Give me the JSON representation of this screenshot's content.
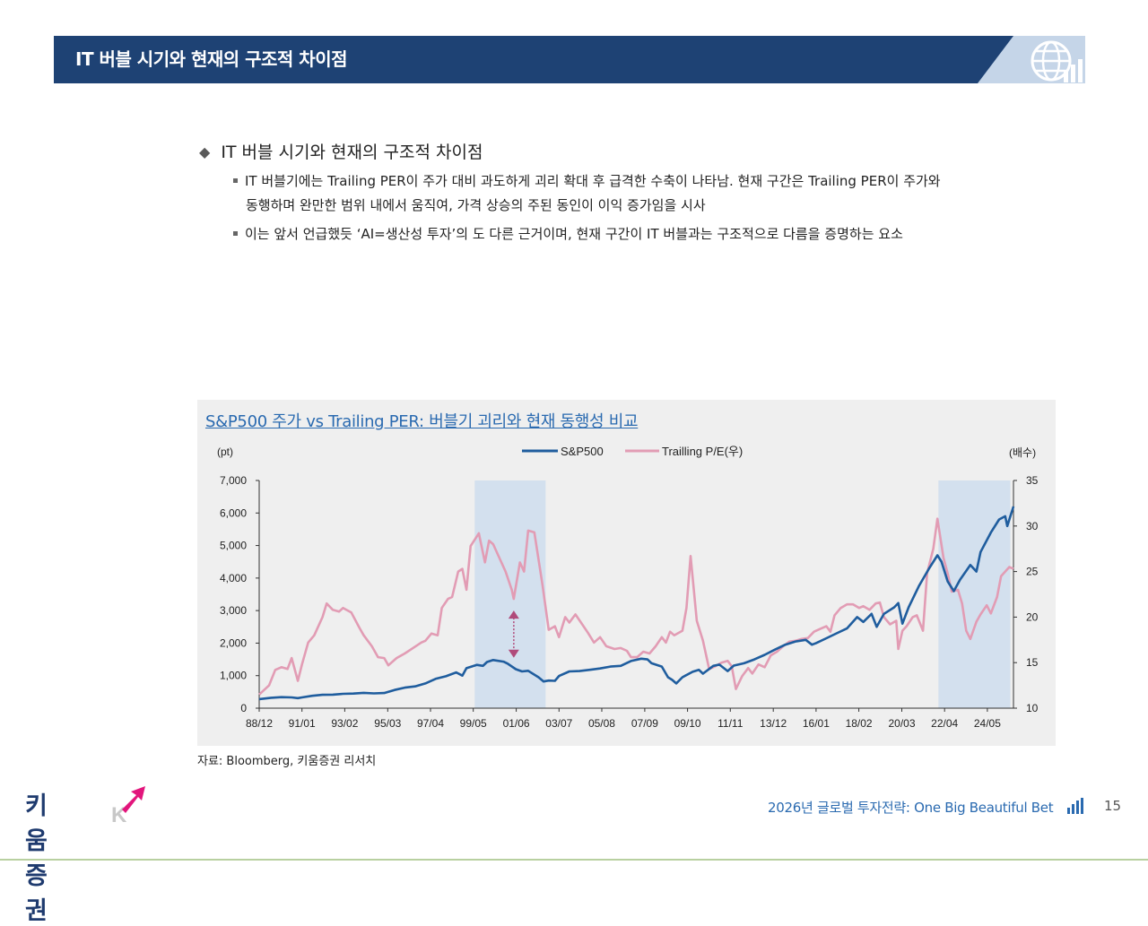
{
  "header": {
    "title": "IT 버블 시기와 현재의 구조적 차이점",
    "icon": "globe-chart-icon"
  },
  "content": {
    "main_bullet": "IT 버블 시기와 현재의 구조적 차이점",
    "sub_bullets": [
      {
        "line1": "IT 버블기에는 Trailing PER이 주가 대비 과도하게 괴리 확대 후 급격한 수축이 나타남. 현재 구간은 Trailing PER이 주가와",
        "line2": "동행하며 완만한 범위 내에서 움직여, 가격 상승의 주된 동인이 이익 증가임을 시사"
      },
      {
        "line1": "이는 앞서 언급했듯 ‘AI=생산성 투자’의 도 다른 근거이며, 현재 구간이 IT 버블과는 구조적으로 다름을 증명하는 요소"
      }
    ]
  },
  "chart_data": {
    "type": "line",
    "title": "S&P500 주가 vs Trailing PER: 버블기 괴리와 현재 동행성 비교",
    "left_unit": "(pt)",
    "right_unit": "(배수)",
    "x_tick_labels": [
      "88/12",
      "91/01",
      "93/02",
      "95/03",
      "97/04",
      "99/05",
      "01/06",
      "03/07",
      "05/08",
      "07/09",
      "09/10",
      "11/11",
      "13/12",
      "16/01",
      "18/02",
      "20/03",
      "22/04",
      "24/05"
    ],
    "x_tick_positions": [
      1988.92,
      1991.0,
      1993.08,
      1995.17,
      1997.25,
      1999.33,
      2001.42,
      2003.5,
      2005.58,
      2007.67,
      2009.75,
      2011.83,
      2013.92,
      2016.0,
      2018.08,
      2020.17,
      2022.25,
      2024.33
    ],
    "x_range": [
      1988.92,
      2025.6
    ],
    "y_left": {
      "range": [
        0,
        7000
      ],
      "ticks": [
        "0",
        "1,000",
        "2,000",
        "3,000",
        "4,000",
        "5,000",
        "6,000",
        "7,000"
      ],
      "tick_values": [
        0,
        1000,
        2000,
        3000,
        4000,
        5000,
        6000,
        7000
      ]
    },
    "y_right": {
      "range": [
        10,
        35
      ],
      "ticks": [
        "10",
        "15",
        "20",
        "25",
        "30",
        "35"
      ],
      "tick_values": [
        10,
        15,
        20,
        25,
        30,
        35
      ]
    },
    "shaded_periods": [
      [
        1999.4,
        2002.85
      ],
      [
        2021.95,
        2025.45
      ]
    ],
    "arrow_annotation": {
      "x": 2001.3,
      "y_left_top": 3000,
      "y_left_bottom": 1550
    },
    "series": [
      {
        "name": "S&P500",
        "axis": "left",
        "color": "#1f5d9e",
        "points": [
          [
            1988.92,
            278
          ],
          [
            1989.5,
            320
          ],
          [
            1990.0,
            340
          ],
          [
            1990.5,
            330
          ],
          [
            1990.8,
            310
          ],
          [
            1991.0,
            330
          ],
          [
            1991.5,
            380
          ],
          [
            1992.0,
            410
          ],
          [
            1992.5,
            415
          ],
          [
            1993.0,
            440
          ],
          [
            1993.5,
            450
          ],
          [
            1994.0,
            470
          ],
          [
            1994.5,
            455
          ],
          [
            1995.0,
            465
          ],
          [
            1995.5,
            560
          ],
          [
            1996.0,
            630
          ],
          [
            1996.5,
            670
          ],
          [
            1997.0,
            760
          ],
          [
            1997.5,
            900
          ],
          [
            1998.0,
            980
          ],
          [
            1998.5,
            1100
          ],
          [
            1998.8,
            1000
          ],
          [
            1999.0,
            1230
          ],
          [
            1999.5,
            1330
          ],
          [
            1999.8,
            1300
          ],
          [
            2000.0,
            1420
          ],
          [
            2000.3,
            1480
          ],
          [
            2000.8,
            1430
          ],
          [
            2001.0,
            1370
          ],
          [
            2001.4,
            1200
          ],
          [
            2001.7,
            1130
          ],
          [
            2002.0,
            1150
          ],
          [
            2002.5,
            950
          ],
          [
            2002.75,
            820
          ],
          [
            2003.0,
            850
          ],
          [
            2003.3,
            840
          ],
          [
            2003.5,
            990
          ],
          [
            2004.0,
            1130
          ],
          [
            2004.5,
            1140
          ],
          [
            2005.0,
            1180
          ],
          [
            2005.5,
            1220
          ],
          [
            2006.0,
            1280
          ],
          [
            2006.5,
            1300
          ],
          [
            2007.0,
            1450
          ],
          [
            2007.5,
            1520
          ],
          [
            2007.8,
            1500
          ],
          [
            2008.0,
            1380
          ],
          [
            2008.5,
            1280
          ],
          [
            2008.8,
            950
          ],
          [
            2009.0,
            870
          ],
          [
            2009.2,
            760
          ],
          [
            2009.5,
            950
          ],
          [
            2010.0,
            1120
          ],
          [
            2010.3,
            1180
          ],
          [
            2010.5,
            1060
          ],
          [
            2011.0,
            1300
          ],
          [
            2011.3,
            1340
          ],
          [
            2011.7,
            1140
          ],
          [
            2012.0,
            1310
          ],
          [
            2012.5,
            1380
          ],
          [
            2013.0,
            1500
          ],
          [
            2013.5,
            1640
          ],
          [
            2014.0,
            1800
          ],
          [
            2014.5,
            1950
          ],
          [
            2015.0,
            2050
          ],
          [
            2015.5,
            2100
          ],
          [
            2015.8,
            1950
          ],
          [
            2016.0,
            2000
          ],
          [
            2016.5,
            2150
          ],
          [
            2017.0,
            2300
          ],
          [
            2017.5,
            2450
          ],
          [
            2018.0,
            2800
          ],
          [
            2018.3,
            2650
          ],
          [
            2018.7,
            2900
          ],
          [
            2018.95,
            2500
          ],
          [
            2019.3,
            2900
          ],
          [
            2019.8,
            3100
          ],
          [
            2020.0,
            3230
          ],
          [
            2020.2,
            2600
          ],
          [
            2020.5,
            3100
          ],
          [
            2021.0,
            3750
          ],
          [
            2021.5,
            4300
          ],
          [
            2021.9,
            4700
          ],
          [
            2022.1,
            4500
          ],
          [
            2022.4,
            3900
          ],
          [
            2022.7,
            3600
          ],
          [
            2023.0,
            3950
          ],
          [
            2023.5,
            4400
          ],
          [
            2023.8,
            4200
          ],
          [
            2024.0,
            4800
          ],
          [
            2024.5,
            5400
          ],
          [
            2024.9,
            5800
          ],
          [
            2025.2,
            5900
          ],
          [
            2025.3,
            5600
          ],
          [
            2025.6,
            6200
          ]
        ]
      },
      {
        "name": "Trailling P/E(우)",
        "axis": "right",
        "color": "#e29cb4",
        "points": [
          [
            1988.92,
            11.5
          ],
          [
            1989.4,
            12.5
          ],
          [
            1989.7,
            14.2
          ],
          [
            1990.0,
            14.5
          ],
          [
            1990.3,
            14.3
          ],
          [
            1990.5,
            15.5
          ],
          [
            1990.8,
            13.0
          ],
          [
            1991.0,
            14.8
          ],
          [
            1991.3,
            17.2
          ],
          [
            1991.6,
            18.0
          ],
          [
            1992.0,
            20.0
          ],
          [
            1992.2,
            21.5
          ],
          [
            1992.5,
            20.8
          ],
          [
            1992.8,
            20.6
          ],
          [
            1993.0,
            21.0
          ],
          [
            1993.4,
            20.5
          ],
          [
            1993.8,
            18.8
          ],
          [
            1994.0,
            18.0
          ],
          [
            1994.4,
            16.8
          ],
          [
            1994.7,
            15.6
          ],
          [
            1995.0,
            15.5
          ],
          [
            1995.2,
            14.7
          ],
          [
            1995.6,
            15.5
          ],
          [
            1996.0,
            16.0
          ],
          [
            1996.4,
            16.6
          ],
          [
            1996.8,
            17.2
          ],
          [
            1997.0,
            17.4
          ],
          [
            1997.3,
            18.2
          ],
          [
            1997.6,
            18.0
          ],
          [
            1997.8,
            21.0
          ],
          [
            1998.1,
            22.0
          ],
          [
            1998.3,
            22.2
          ],
          [
            1998.6,
            25.0
          ],
          [
            1998.8,
            25.3
          ],
          [
            1999.0,
            23.0
          ],
          [
            1999.2,
            27.8
          ],
          [
            1999.6,
            29.2
          ],
          [
            1999.9,
            26.0
          ],
          [
            2000.1,
            28.4
          ],
          [
            2000.3,
            28.0
          ],
          [
            2000.6,
            26.5
          ],
          [
            2000.9,
            25.0
          ],
          [
            2001.2,
            23.0
          ],
          [
            2001.3,
            22.0
          ],
          [
            2001.6,
            26.0
          ],
          [
            2001.8,
            25.0
          ],
          [
            2002.0,
            29.5
          ],
          [
            2002.3,
            29.3
          ],
          [
            2002.7,
            23.5
          ],
          [
            2003.0,
            18.6
          ],
          [
            2003.3,
            19.0
          ],
          [
            2003.5,
            17.8
          ],
          [
            2003.8,
            20.0
          ],
          [
            2004.0,
            19.4
          ],
          [
            2004.3,
            20.3
          ],
          [
            2004.6,
            19.3
          ],
          [
            2004.9,
            18.3
          ],
          [
            2005.2,
            17.2
          ],
          [
            2005.5,
            17.8
          ],
          [
            2005.8,
            16.8
          ],
          [
            2006.2,
            16.5
          ],
          [
            2006.5,
            16.6
          ],
          [
            2006.8,
            16.3
          ],
          [
            2007.0,
            15.6
          ],
          [
            2007.3,
            15.6
          ],
          [
            2007.6,
            16.2
          ],
          [
            2007.9,
            16.0
          ],
          [
            2008.2,
            16.8
          ],
          [
            2008.5,
            17.8
          ],
          [
            2008.7,
            17.2
          ],
          [
            2008.9,
            18.4
          ],
          [
            2009.1,
            18.0
          ],
          [
            2009.5,
            18.5
          ],
          [
            2009.7,
            21.0
          ],
          [
            2009.9,
            26.7
          ],
          [
            2010.2,
            19.6
          ],
          [
            2010.5,
            17.4
          ],
          [
            2010.8,
            14.3
          ],
          [
            2011.1,
            14.6
          ],
          [
            2011.4,
            15.0
          ],
          [
            2011.7,
            15.2
          ],
          [
            2011.9,
            14.6
          ],
          [
            2012.1,
            12.1
          ],
          [
            2012.4,
            13.5
          ],
          [
            2012.7,
            14.4
          ],
          [
            2012.9,
            13.8
          ],
          [
            2013.2,
            14.8
          ],
          [
            2013.5,
            14.5
          ],
          [
            2013.8,
            15.8
          ],
          [
            2014.1,
            16.2
          ],
          [
            2014.4,
            16.8
          ],
          [
            2014.7,
            17.3
          ],
          [
            2015.0,
            17.4
          ],
          [
            2015.3,
            17.6
          ],
          [
            2015.6,
            17.7
          ],
          [
            2015.9,
            18.4
          ],
          [
            2016.2,
            18.7
          ],
          [
            2016.5,
            19.0
          ],
          [
            2016.7,
            18.4
          ],
          [
            2016.9,
            20.2
          ],
          [
            2017.2,
            21.0
          ],
          [
            2017.5,
            21.4
          ],
          [
            2017.8,
            21.4
          ],
          [
            2018.1,
            21.0
          ],
          [
            2018.3,
            21.2
          ],
          [
            2018.6,
            20.8
          ],
          [
            2018.9,
            21.5
          ],
          [
            2019.1,
            21.6
          ],
          [
            2019.3,
            20.0
          ],
          [
            2019.6,
            19.2
          ],
          [
            2019.9,
            19.6
          ],
          [
            2020.0,
            16.5
          ],
          [
            2020.2,
            18.5
          ],
          [
            2020.4,
            19.0
          ],
          [
            2020.7,
            20.0
          ],
          [
            2020.9,
            20.2
          ],
          [
            2021.2,
            18.5
          ],
          [
            2021.4,
            24.8
          ],
          [
            2021.7,
            27.5
          ],
          [
            2021.9,
            30.8
          ],
          [
            2022.2,
            26.5
          ],
          [
            2022.4,
            24.8
          ],
          [
            2022.6,
            22.8
          ],
          [
            2022.9,
            23.0
          ],
          [
            2023.1,
            21.5
          ],
          [
            2023.3,
            18.5
          ],
          [
            2023.5,
            17.6
          ],
          [
            2023.8,
            19.5
          ],
          [
            2024.0,
            20.3
          ],
          [
            2024.3,
            21.3
          ],
          [
            2024.5,
            20.4
          ],
          [
            2024.8,
            22.2
          ],
          [
            2025.0,
            24.5
          ],
          [
            2025.2,
            25.0
          ],
          [
            2025.4,
            25.5
          ],
          [
            2025.6,
            25.3
          ]
        ]
      }
    ]
  },
  "source": "자료: Bloomberg, 키움증권 리서치",
  "footer": {
    "logo_text": "키움증권",
    "title": "2026년 글로벌 투자전략: One Big Beautiful Bet",
    "page_number": "15"
  },
  "colors": {
    "banner": "#1e4274",
    "banner_light": "#c5d5e8",
    "title_blue": "#2a6ab0",
    "shade": "#d3e0ee",
    "arrow": "#b04a7a",
    "logo_accent": "#e2157c"
  }
}
